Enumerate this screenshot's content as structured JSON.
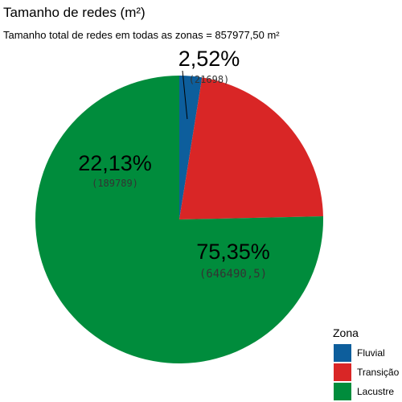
{
  "title": "Tamanho de redes (m²)",
  "subtitle": "Tamanho total de redes em todas as zonas = 857977,50 m²",
  "colors": {
    "Fluvial": "#0d5e9c",
    "Transição": "#d92626",
    "Lacustre": "#008c3c"
  },
  "chart_data": {
    "type": "pie",
    "title": "Tamanho de redes (m²)",
    "subtitle": "Tamanho total de redes em todas as zonas = 857977,50 m²",
    "legend_title": "Zona",
    "legend_position": "bottom-right",
    "slices": [
      {
        "label": "Fluvial",
        "value": 21698,
        "percent_label": "2,52%",
        "value_label": "(21698)"
      },
      {
        "label": "Transição",
        "value": 189789,
        "percent_label": "22,13%",
        "value_label": "(189789)"
      },
      {
        "label": "Lacustre",
        "value": 646490.5,
        "percent_label": "75,35%",
        "value_label": "(646490,5)"
      }
    ]
  }
}
